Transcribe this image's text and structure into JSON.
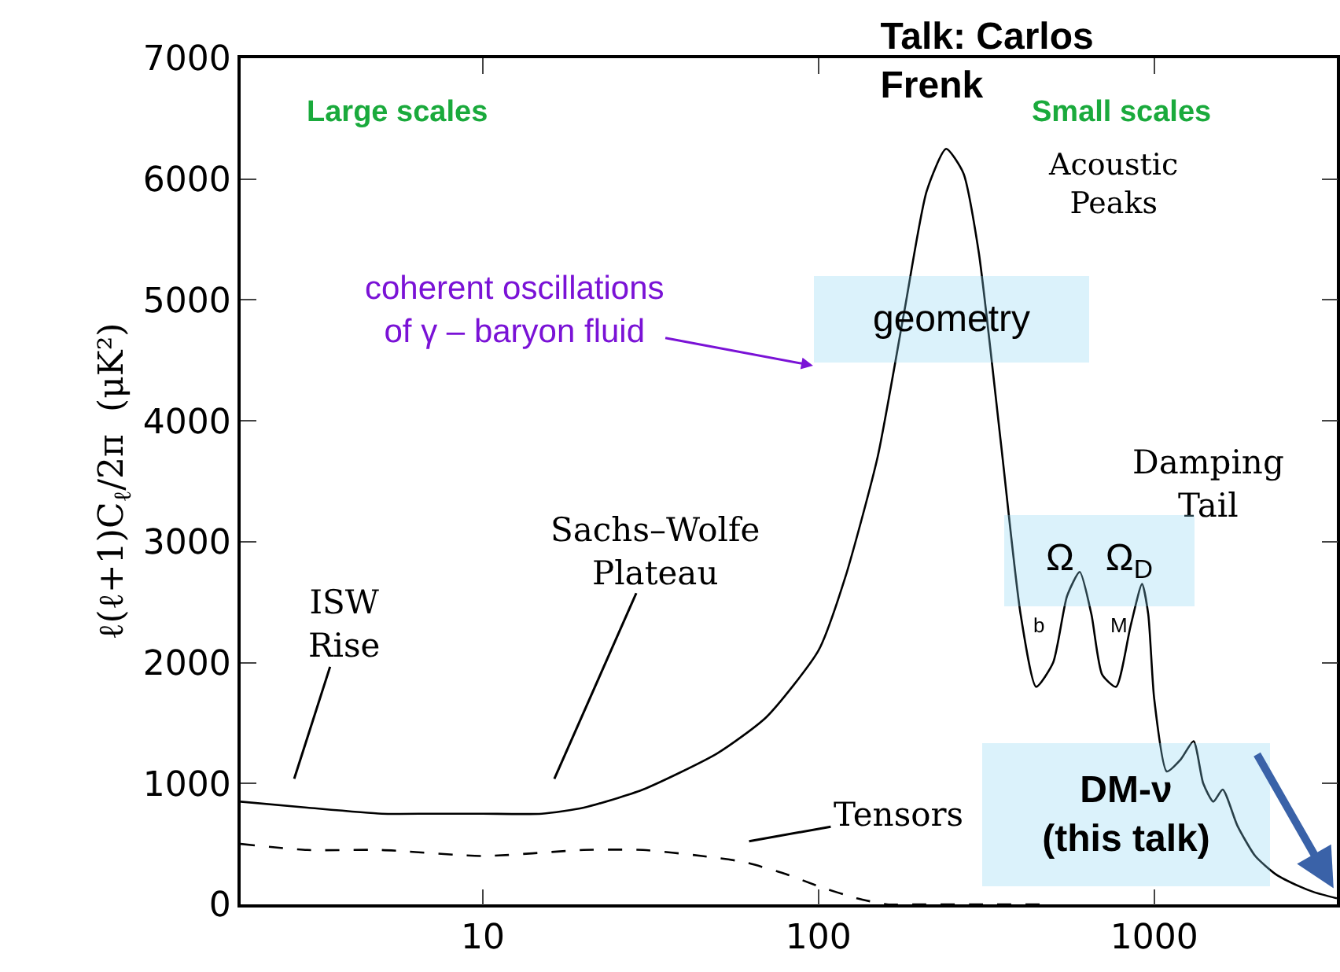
{
  "chart_data": {
    "type": "line",
    "title": "Talk: Carlos Frenk",
    "ylabel": "ℓ(ℓ+1)C$_{ℓ}$/2π  (μK²)",
    "log": "x",
    "xlim": [
      1.9,
      3500
    ],
    "xticks": [
      10,
      100,
      1000
    ],
    "ylim": [
      0,
      7000
    ],
    "yticks": [
      0,
      1000,
      2000,
      3000,
      4000,
      5000,
      6000,
      7000
    ],
    "legend": false,
    "marker": "none",
    "series": [
      {
        "color": "#000000",
        "line_style": "solid",
        "x": [
          1.9,
          3,
          5,
          7,
          10,
          15,
          20,
          30,
          50,
          70,
          100,
          120,
          150,
          180,
          210,
          240,
          270,
          300,
          350,
          400,
          445,
          500,
          550,
          600,
          650,
          700,
          770,
          850,
          920,
          960,
          1000,
          1090,
          1200,
          1310,
          1400,
          1500,
          1600,
          1770,
          2000,
          2300,
          2700,
          3000,
          3500
        ],
        "values": [
          850,
          800,
          750,
          750,
          750,
          750,
          800,
          950,
          1250,
          1550,
          2100,
          2700,
          3700,
          4900,
          5900,
          6250,
          6050,
          5400,
          3800,
          2400,
          1800,
          2000,
          2550,
          2750,
          2400,
          1900,
          1800,
          2300,
          2650,
          2400,
          1700,
          1100,
          1200,
          1350,
          1000,
          850,
          950,
          650,
          400,
          250,
          150,
          100,
          50
        ]
      },
      {
        "color": "#000000",
        "line_style": "dashed",
        "x": [
          1.9,
          3,
          5,
          10,
          20,
          30,
          45,
          60,
          80,
          100,
          130,
          160,
          200,
          300,
          500
        ],
        "values": [
          500,
          450,
          450,
          400,
          450,
          450,
          400,
          350,
          250,
          150,
          50,
          0,
          0,
          0,
          0
        ]
      }
    ],
    "annotations": [
      "Large scales",
      "Small scales",
      "Acoustic Peaks",
      "coherent oscillations of γ – baryon fluid",
      "geometry",
      "Damping Tail",
      "Ω   Ω$_{D}$",
      "b",
      "M",
      "ISW Rise",
      "Sachs–Wolfe Plateau",
      "Tensors",
      "DM-ν (this talk)"
    ]
  }
}
